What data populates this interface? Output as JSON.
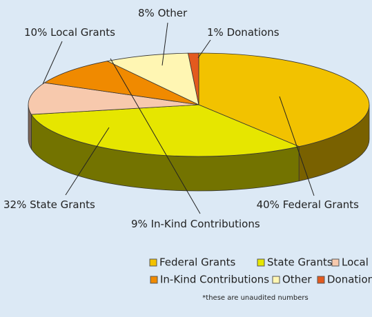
{
  "chart_data": {
    "type": "pie3d",
    "categories": [
      "Federal Grants",
      "State Grants",
      "Local Grants",
      "In-Kind Contributions",
      "Other",
      "Donations"
    ],
    "values": [
      40,
      32,
      10,
      9,
      8,
      1
    ],
    "value_labels": [
      "40%",
      "32%",
      "10%",
      "9%",
      "8%",
      "1%"
    ],
    "colors": [
      "#f2c200",
      "#e6e600",
      "#f7c9ad",
      "#f08a00",
      "#fff6b3",
      "#e35a1e"
    ],
    "legend": "bottom",
    "footnote": "*these are unaudited numbers"
  }
}
